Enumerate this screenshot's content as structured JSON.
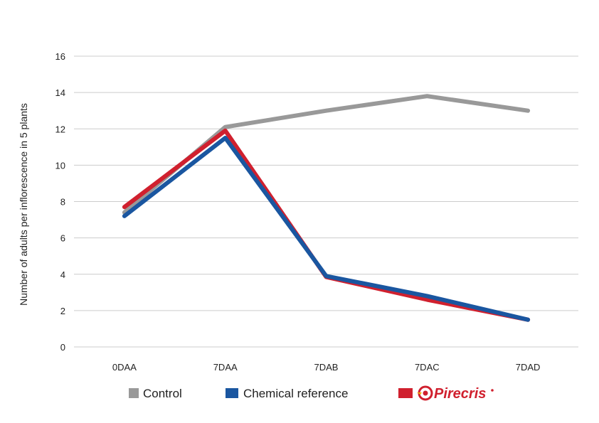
{
  "chart_data": {
    "type": "line",
    "title": "",
    "xlabel": "",
    "ylabel": "Number of adults per inflorescence in 5 plants",
    "categories": [
      "0DAA",
      "7DAA",
      "7DAB",
      "7DAC",
      "7DAD"
    ],
    "ylim": [
      0,
      16
    ],
    "yticks": [
      "0",
      "2",
      "4",
      "6",
      "8",
      "10",
      "12",
      "14",
      "16"
    ],
    "grid": true,
    "legend_position": "bottom",
    "series": [
      {
        "name": "Control",
        "color": "#999999",
        "values": [
          7.4,
          12.1,
          13.0,
          13.8,
          13.0
        ]
      },
      {
        "name": "Chemical reference",
        "color": "#1a56a0",
        "values": [
          7.2,
          11.5,
          3.9,
          2.8,
          1.5
        ]
      },
      {
        "name": "Pirecris",
        "color": "#d0202e",
        "logo": "pirecris-logo",
        "values": [
          7.7,
          11.9,
          3.85,
          2.6,
          1.5
        ]
      }
    ]
  }
}
